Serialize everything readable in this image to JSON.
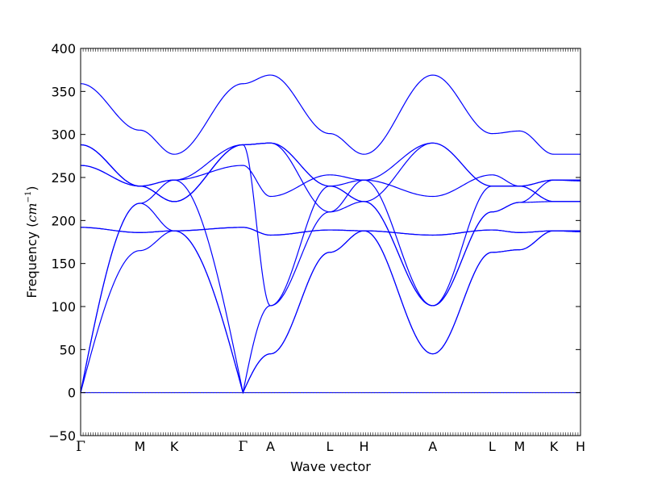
{
  "chart_data": {
    "type": "line",
    "title": "",
    "xlabel": "Wave vector",
    "ylabel_text": "Frequency (",
    "ylabel_unit_base": "cm",
    "ylabel_unit_exp": "−1",
    "ylabel_close": ")",
    "ylim": [
      -50,
      400
    ],
    "xlim": [
      0,
      5.82
    ],
    "yticks": [
      -50,
      0,
      50,
      100,
      150,
      200,
      250,
      300,
      350,
      400
    ],
    "yticklabels": [
      "−50",
      "0",
      "50",
      "100",
      "150",
      "200",
      "250",
      "300",
      "350",
      "400"
    ],
    "high_symmetry_points": [
      {
        "label": "Γ",
        "x": 0.0
      },
      {
        "label": "M",
        "x": 0.69
      },
      {
        "label": "K",
        "x": 1.09
      },
      {
        "label": "Γ",
        "x": 1.89
      },
      {
        "label": "A",
        "x": 2.21
      },
      {
        "label": "L",
        "x": 2.9
      },
      {
        "label": "H",
        "x": 3.3
      },
      {
        "label": "A",
        "x": 4.1
      },
      {
        "label": "L",
        "x": 4.79
      },
      {
        "label": "M",
        "x": 5.11
      },
      {
        "label": "K",
        "x": 5.51
      },
      {
        "label": "H",
        "x": 5.82
      }
    ],
    "zero_line": true,
    "line_color": "#0000ff",
    "zero_line_color": "#555555",
    "branch_nodes": [
      [
        0,
        0,
        0,
        0,
        0,
        0,
        0,
        0,
        0,
        0,
        0,
        0
      ],
      [
        0,
        165,
        188,
        0,
        45,
        163,
        188,
        45,
        163,
        166,
        188,
        188
      ],
      [
        0,
        220,
        188,
        0,
        45,
        163,
        188,
        45,
        163,
        166,
        188,
        188
      ],
      [
        192,
        186,
        188,
        192,
        183,
        189,
        188,
        183,
        189,
        186,
        188,
        187
      ],
      [
        192,
        186,
        188,
        192,
        183,
        189,
        188,
        183,
        189,
        186,
        188,
        187
      ],
      [
        264,
        240,
        222,
        288,
        290,
        210,
        247,
        101,
        210,
        221,
        247,
        247
      ],
      [
        288,
        240,
        247,
        288,
        290,
        240,
        247,
        290,
        240,
        240,
        247,
        247
      ],
      [
        288,
        240,
        247,
        264,
        228,
        253,
        247,
        228,
        253,
        240,
        247,
        246
      ],
      [
        264,
        240,
        222,
        288,
        290,
        240,
        222,
        290,
        240,
        240,
        222,
        222
      ],
      [
        0,
        220,
        247,
        0,
        101,
        240,
        222,
        101,
        240,
        240,
        222,
        222
      ],
      [
        288,
        240,
        222,
        288,
        101,
        210,
        222,
        101,
        210,
        221,
        222,
        222
      ],
      [
        359,
        305,
        277,
        359,
        369,
        301,
        277,
        369,
        301,
        304,
        277,
        277
      ]
    ]
  }
}
